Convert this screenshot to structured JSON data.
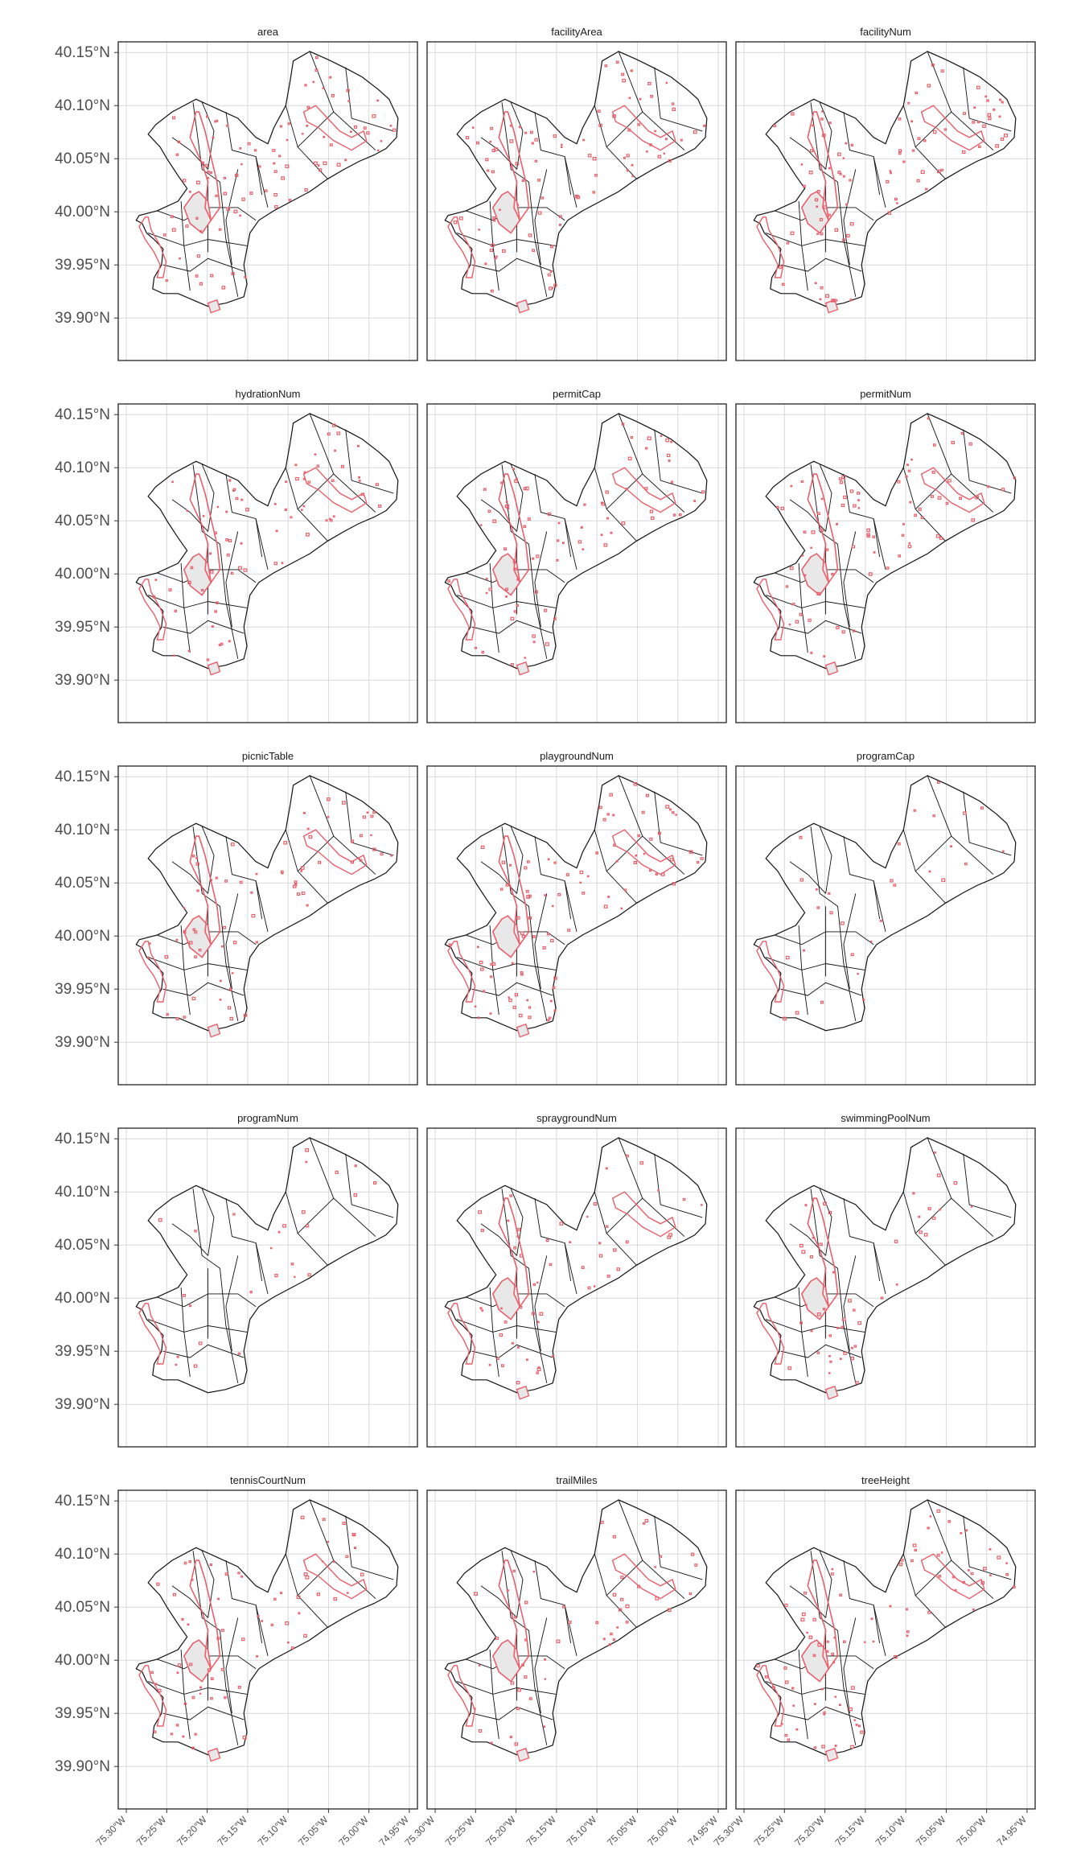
{
  "figure": {
    "panels": [
      "area",
      "facilityArea",
      "facilityNum",
      "hydrationNum",
      "permitCap",
      "permitNum",
      "picnicTable",
      "playgroundNum",
      "programCap",
      "programNum",
      "spraygroundNum",
      "swimmingPoolNum",
      "tennisCourtNum",
      "trailMiles",
      "treeHeight"
    ],
    "y_ticks": [
      "40.15°N",
      "40.10°N",
      "40.05°N",
      "40.00°N",
      "39.95°N",
      "39.90°N"
    ],
    "x_ticks": [
      "75.30°W",
      "75.25°W",
      "75.20°W",
      "75.15°W",
      "75.10°W",
      "75.05°W",
      "75.00°W",
      "74.95°W"
    ],
    "colors": {
      "highlight": "#e8606c",
      "highlight_fill": "#e8e8e8",
      "boundary": "#111111",
      "grid": "#d9d9d9",
      "frame": "#222222"
    },
    "x_range_lon": [
      -75.31,
      -74.94
    ],
    "y_range_lat": [
      39.86,
      40.16
    ]
  }
}
